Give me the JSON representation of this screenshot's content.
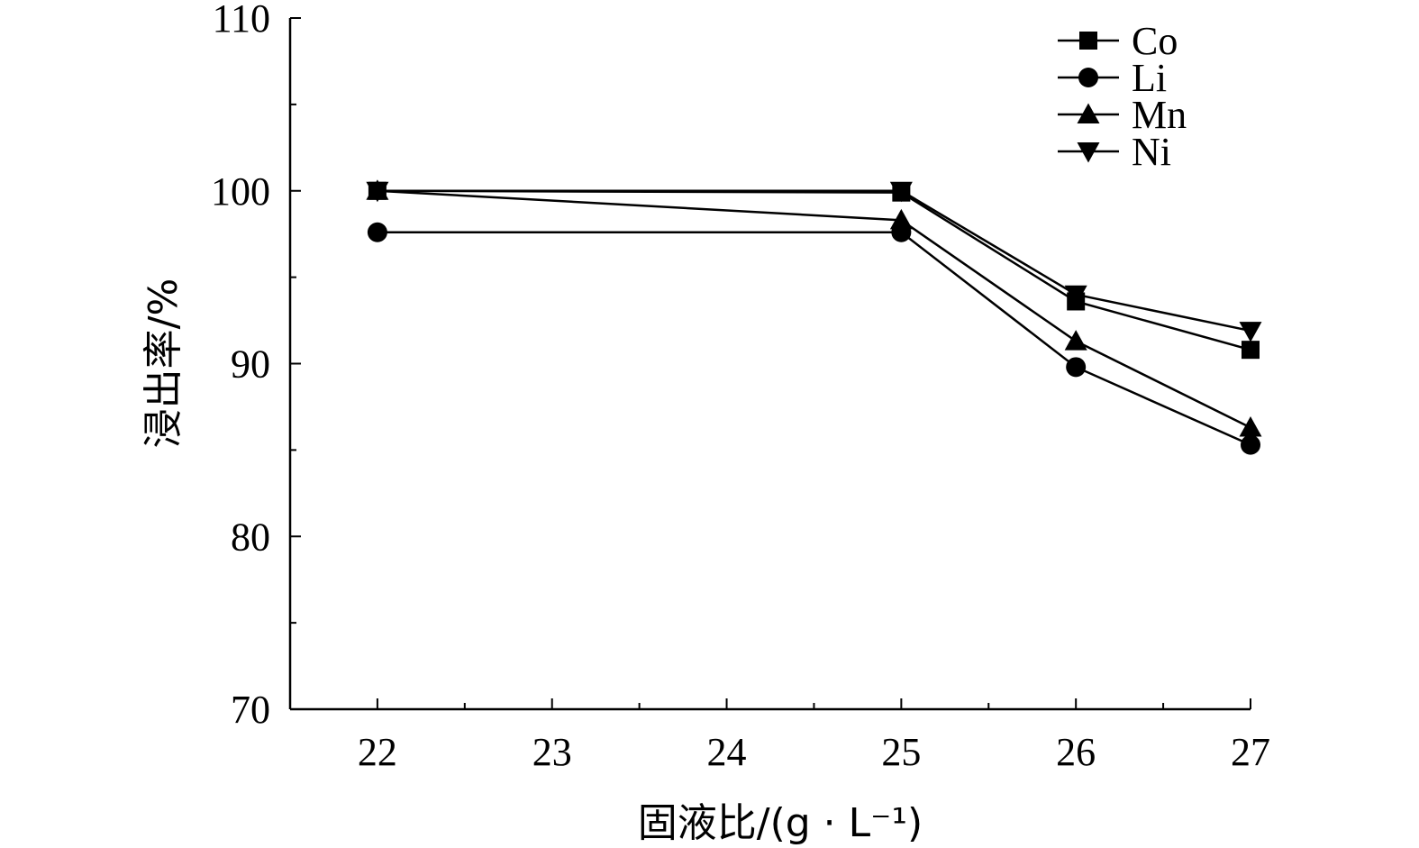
{
  "chart_data": {
    "type": "line",
    "xlabel": "固液比/(g · L⁻¹)",
    "ylabel": "浸出率/%",
    "x_ticks": [
      "22",
      "23",
      "24",
      "25",
      "26",
      "27"
    ],
    "xlim": [
      21.5,
      27
    ],
    "y_ticks": [
      "70",
      "80",
      "90",
      "100",
      "110"
    ],
    "ylim": [
      70,
      110
    ],
    "grid": false,
    "legend_position": "top-right",
    "x": [
      22,
      25,
      26,
      27
    ],
    "series": [
      {
        "name": "Co",
        "marker": "square",
        "values": [
          100,
          99.9,
          93.6,
          90.8
        ]
      },
      {
        "name": "Li",
        "marker": "circle",
        "values": [
          97.6,
          97.6,
          89.8,
          85.3
        ]
      },
      {
        "name": "Mn",
        "marker": "triangle-up",
        "values": [
          100,
          98.3,
          91.3,
          86.3
        ]
      },
      {
        "name": "Ni",
        "marker": "triangle-down",
        "values": [
          100,
          100,
          94,
          91.9
        ]
      }
    ]
  }
}
